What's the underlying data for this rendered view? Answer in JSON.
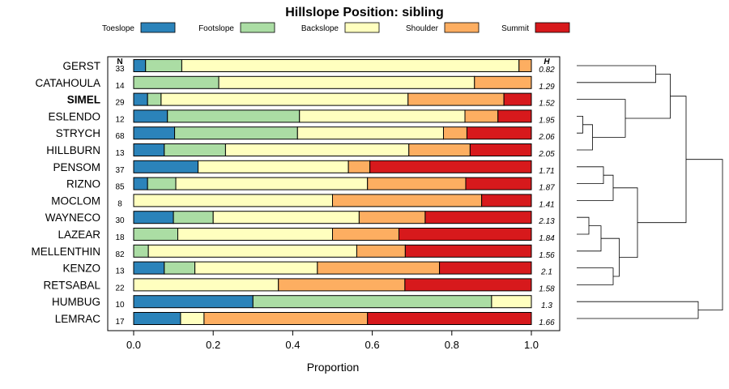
{
  "chart_data": {
    "type": "bar",
    "orientation": "horizontal",
    "stacked": true,
    "title": "Hillslope Position: sibling",
    "xlabel": "Proportion",
    "xlim": [
      0,
      1
    ],
    "xticks": [
      "0.0",
      "0.2",
      "0.4",
      "0.6",
      "0.8",
      "1.0"
    ],
    "xtick_values": [
      0,
      0.2,
      0.4,
      0.6,
      0.8,
      1.0
    ],
    "n_header": "N",
    "h_header": "H",
    "highlight": "SIMEL",
    "legend": [
      {
        "name": "Toeslope",
        "color": "#2b83ba"
      },
      {
        "name": "Footslope",
        "color": "#abdda4"
      },
      {
        "name": "Backslope",
        "color": "#ffffbf"
      },
      {
        "name": "Shoulder",
        "color": "#fdae61"
      },
      {
        "name": "Summit",
        "color": "#d7191c"
      }
    ],
    "categories": [
      "GERST",
      "CATAHOULA",
      "SIMEL",
      "ESLENDO",
      "STRYCH",
      "HILLBURN",
      "PENSOM",
      "RIZNO",
      "MOCLOM",
      "WAYNECO",
      "LAZEAR",
      "MELLENTHIN",
      "KENZO",
      "RETSABAL",
      "HUMBUG",
      "LEMRAC"
    ],
    "n": [
      "33",
      "14",
      "29",
      "12",
      "68",
      "13",
      "37",
      "85",
      "8",
      "30",
      "18",
      "82",
      "13",
      "22",
      "10",
      "17"
    ],
    "h": [
      "0.82",
      "1.29",
      "1.52",
      "1.95",
      "2.06",
      "2.05",
      "1.71",
      "1.87",
      "1.41",
      "2.13",
      "1.84",
      "1.56",
      "2.1",
      "1.58",
      "1.3",
      "1.66"
    ],
    "series": [
      {
        "name": "Toeslope",
        "values": [
          0.03,
          0,
          0.035,
          0.085,
          0.103,
          0.077,
          0.162,
          0.035,
          0,
          0.1,
          0,
          0,
          0.077,
          0,
          0.3,
          0.118
        ]
      },
      {
        "name": "Footslope",
        "values": [
          0.091,
          0.214,
          0.034,
          0.332,
          0.309,
          0.154,
          0,
          0.071,
          0,
          0.1,
          0.111,
          0.037,
          0.077,
          0,
          0.6,
          0
        ]
      },
      {
        "name": "Backslope",
        "values": [
          0.848,
          0.643,
          0.621,
          0.416,
          0.367,
          0.461,
          0.378,
          0.482,
          0.5,
          0.367,
          0.389,
          0.524,
          0.308,
          0.364,
          0.1,
          0.059
        ]
      },
      {
        "name": "Shoulder",
        "values": [
          0.031,
          0.143,
          0.241,
          0.083,
          0.059,
          0.154,
          0.054,
          0.247,
          0.375,
          0.166,
          0.167,
          0.122,
          0.307,
          0.318,
          0,
          0.411
        ]
      },
      {
        "name": "Summit",
        "values": [
          0,
          0,
          0.069,
          0.084,
          0.162,
          0.154,
          0.406,
          0.165,
          0.125,
          0.267,
          0.333,
          0.317,
          0.231,
          0.318,
          0,
          0.412
        ]
      }
    ],
    "dendrogram": {
      "merges": [
        {
          "a": 0,
          "b": 1,
          "height": 0.65
        },
        {
          "a": 3,
          "b": 4,
          "height": 0.05
        },
        {
          "a": 5,
          "b": "c1",
          "height": 0.13
        },
        {
          "a": 2,
          "b": "c2",
          "height": 0.4
        },
        {
          "a": "c0",
          "b": "c3",
          "height": 0.77
        },
        {
          "a": 6,
          "b": 7,
          "height": 0.22
        },
        {
          "a": 8,
          "b": "c5",
          "height": 0.3
        },
        {
          "a": 9,
          "b": 10,
          "height": 0.1
        },
        {
          "a": 11,
          "b": "c7",
          "height": 0.2
        },
        {
          "a": 12,
          "b": 13,
          "height": 0.3
        },
        {
          "a": "c8",
          "b": "c9",
          "height": 0.35
        },
        {
          "a": "c6",
          "b": "c10",
          "height": 0.5
        },
        {
          "a": "c4",
          "b": "c11",
          "height": 0.9
        },
        {
          "a": 14,
          "b": 15,
          "height": 1.0
        },
        {
          "a": "c12",
          "b": "c13",
          "height": 1.2
        }
      ]
    }
  }
}
